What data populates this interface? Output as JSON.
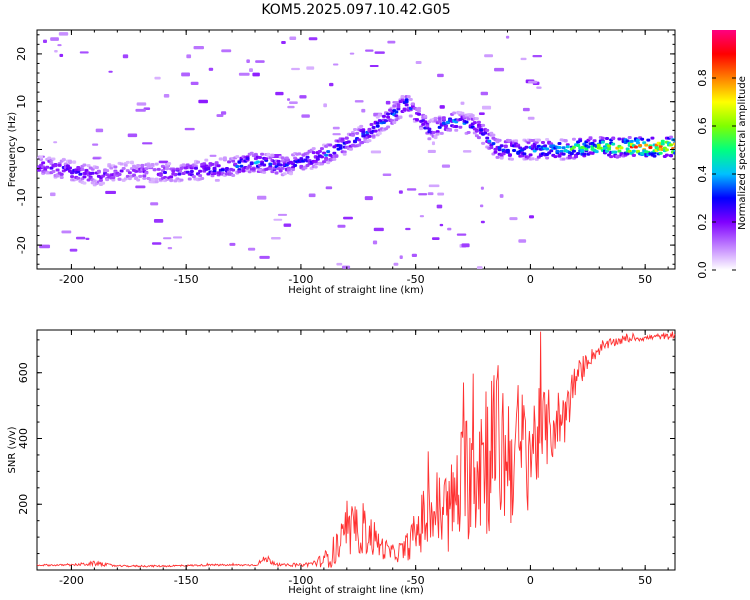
{
  "title": "KOM5.2025.097.10.42.G05",
  "chart_data": [
    {
      "type": "heatmap",
      "xlabel": "Height of straight line (km)",
      "ylabel": "Frequency (Hz)",
      "xlim": [
        -215,
        63
      ],
      "ylim": [
        -25,
        25
      ],
      "xticks": [
        -200,
        -150,
        -100,
        -50,
        0,
        50
      ],
      "yticks": [
        -20,
        -10,
        0,
        10,
        20
      ],
      "colorbar": {
        "label": "Normalized spectral amplitude",
        "ticks": [
          "0.0",
          "0.2",
          "0.4",
          "0.6",
          "0.8"
        ],
        "range": [
          0,
          1
        ],
        "colors": [
          "#ffffff",
          "#c080ff",
          "#8000ff",
          "#0000ff",
          "#00c0ff",
          "#00ff80",
          "#80ff00",
          "#ffff00",
          "#ff8000",
          "#ff0000",
          "#ff0080"
        ]
      },
      "ridge": [
        {
          "x": -212,
          "y": -3.5,
          "a": 0.25
        },
        {
          "x": -200,
          "y": -4.5,
          "a": 0.3
        },
        {
          "x": -190,
          "y": -5.5,
          "a": 0.25
        },
        {
          "x": -175,
          "y": -4.5,
          "a": 0.2
        },
        {
          "x": -160,
          "y": -5.0,
          "a": 0.25
        },
        {
          "x": -145,
          "y": -4.5,
          "a": 0.3
        },
        {
          "x": -130,
          "y": -3.5,
          "a": 0.35
        },
        {
          "x": -120,
          "y": -2.5,
          "a": 0.4
        },
        {
          "x": -110,
          "y": -3.5,
          "a": 0.3
        },
        {
          "x": -100,
          "y": -2.5,
          "a": 0.3
        },
        {
          "x": -90,
          "y": -1.0,
          "a": 0.35
        },
        {
          "x": -80,
          "y": 1.5,
          "a": 0.35
        },
        {
          "x": -70,
          "y": 4.0,
          "a": 0.3
        },
        {
          "x": -60,
          "y": 7.5,
          "a": 0.35
        },
        {
          "x": -55,
          "y": 10.0,
          "a": 0.35
        },
        {
          "x": -45,
          "y": 4.0,
          "a": 0.3
        },
        {
          "x": -35,
          "y": 6.0,
          "a": 0.35
        },
        {
          "x": -25,
          "y": 5.0,
          "a": 0.35
        },
        {
          "x": -15,
          "y": 0.0,
          "a": 0.35
        },
        {
          "x": -5,
          "y": 0.0,
          "a": 0.4
        },
        {
          "x": 5,
          "y": 0.0,
          "a": 0.4
        },
        {
          "x": 15,
          "y": 0.0,
          "a": 0.55
        },
        {
          "x": 25,
          "y": 0.5,
          "a": 0.6
        },
        {
          "x": 35,
          "y": 0.5,
          "a": 0.7
        },
        {
          "x": 45,
          "y": 0.5,
          "a": 0.85
        },
        {
          "x": 55,
          "y": 0.5,
          "a": 0.9
        },
        {
          "x": 63,
          "y": 0.5,
          "a": 0.9
        }
      ]
    },
    {
      "type": "line",
      "xlabel": "Height of straight line (km)",
      "ylabel": "SNR (v/v)",
      "xlim": [
        -215,
        63
      ],
      "ylim": [
        0,
        730
      ],
      "xticks": [
        -200,
        -150,
        -100,
        -50,
        0,
        50
      ],
      "yticks": [
        200,
        400,
        600
      ],
      "color": "#ff3030",
      "series": [
        {
          "x": [
            -215,
            -200,
            -190,
            -180,
            -160,
            -140,
            -120,
            -115,
            -110,
            -100,
            -95,
            -90,
            -85,
            -80,
            -75,
            -70,
            -65,
            -60,
            -55,
            -50,
            -45,
            -40,
            -35,
            -30,
            -25,
            -20,
            -15,
            -10,
            -5,
            0,
            5,
            10,
            15,
            20,
            25,
            30,
            35,
            40,
            45,
            50,
            55,
            60,
            63
          ],
          "y": [
            15,
            15,
            20,
            12,
            12,
            15,
            15,
            35,
            15,
            15,
            20,
            30,
            60,
            100,
            120,
            110,
            70,
            50,
            60,
            110,
            170,
            180,
            180,
            260,
            340,
            360,
            380,
            350,
            360,
            370,
            420,
            440,
            470,
            580,
            640,
            670,
            690,
            700,
            705,
            705,
            710,
            710,
            710
          ],
          "noise": [
            3,
            3,
            8,
            3,
            3,
            3,
            3,
            15,
            4,
            5,
            10,
            25,
            60,
            80,
            80,
            80,
            40,
            30,
            40,
            80,
            130,
            150,
            160,
            200,
            280,
            300,
            300,
            250,
            250,
            200,
            150,
            120,
            100,
            60,
            30,
            20,
            15,
            15,
            10,
            10,
            10,
            10,
            10
          ]
        }
      ]
    }
  ]
}
